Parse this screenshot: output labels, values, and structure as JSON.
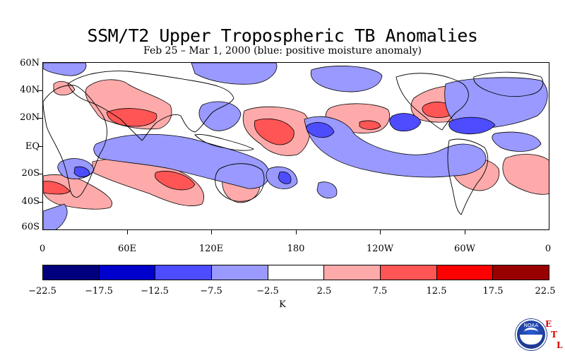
{
  "title": "SSM/T2 Upper Tropospheric TB Anomalies",
  "subtitle": "Feb 25 – Mar 1, 2000 (blue: positive moisture anomaly)",
  "map": {
    "lat_labels": [
      "60N",
      "40N",
      "20N",
      "EQ",
      "20S",
      "40S",
      "60S"
    ],
    "lon_labels": [
      "0",
      "60E",
      "120E",
      "180",
      "120W",
      "60W",
      "0"
    ]
  },
  "colorbar": {
    "labels": [
      "−22.5",
      "−17.5",
      "−12.5",
      "−7.5",
      "−2.5",
      "2.5",
      "7.5",
      "12.5",
      "17.5",
      "22.5"
    ],
    "colors": [
      "#00007f",
      "#0000cc",
      "#4d4dff",
      "#9999ff",
      "#ffffff",
      "#ffaaaa",
      "#ff5555",
      "#ff0000",
      "#990000"
    ],
    "units": "K"
  },
  "logo": {
    "text": "NOAA",
    "etl": [
      "E",
      "T",
      "L"
    ]
  }
}
